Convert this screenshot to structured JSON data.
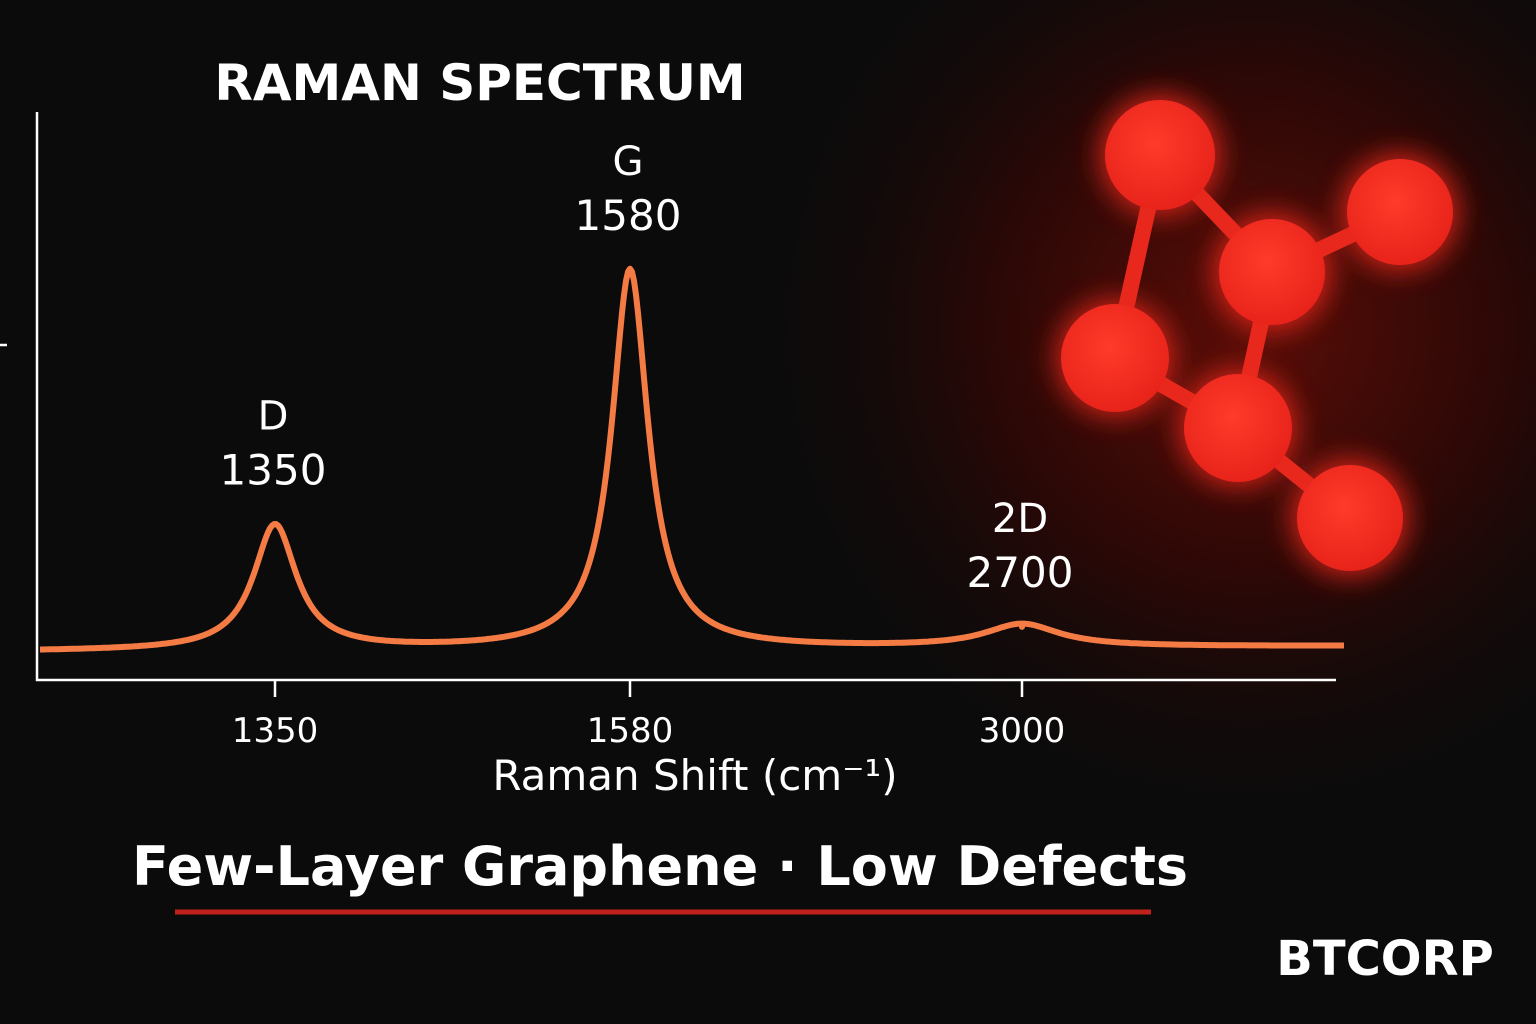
{
  "chart_data": {
    "type": "line",
    "title": "RAMAN SPECTRUM",
    "x_label": "Raman Shift (cm⁻¹)",
    "categories": [
      "1350",
      "1580",
      "3000"
    ],
    "peaks": [
      {
        "label": "D",
        "shift": 1350,
        "intensity": 33
      },
      {
        "label": "G",
        "shift": 1580,
        "intensity": 100
      },
      {
        "label": "2D",
        "shift": 2700,
        "intensity": 6
      }
    ],
    "ylim": [
      -8,
      100
    ],
    "color": "#f47c44",
    "subtitle": "Few-Layer Graphene · Low Defects",
    "brand": "BTCORP"
  }
}
